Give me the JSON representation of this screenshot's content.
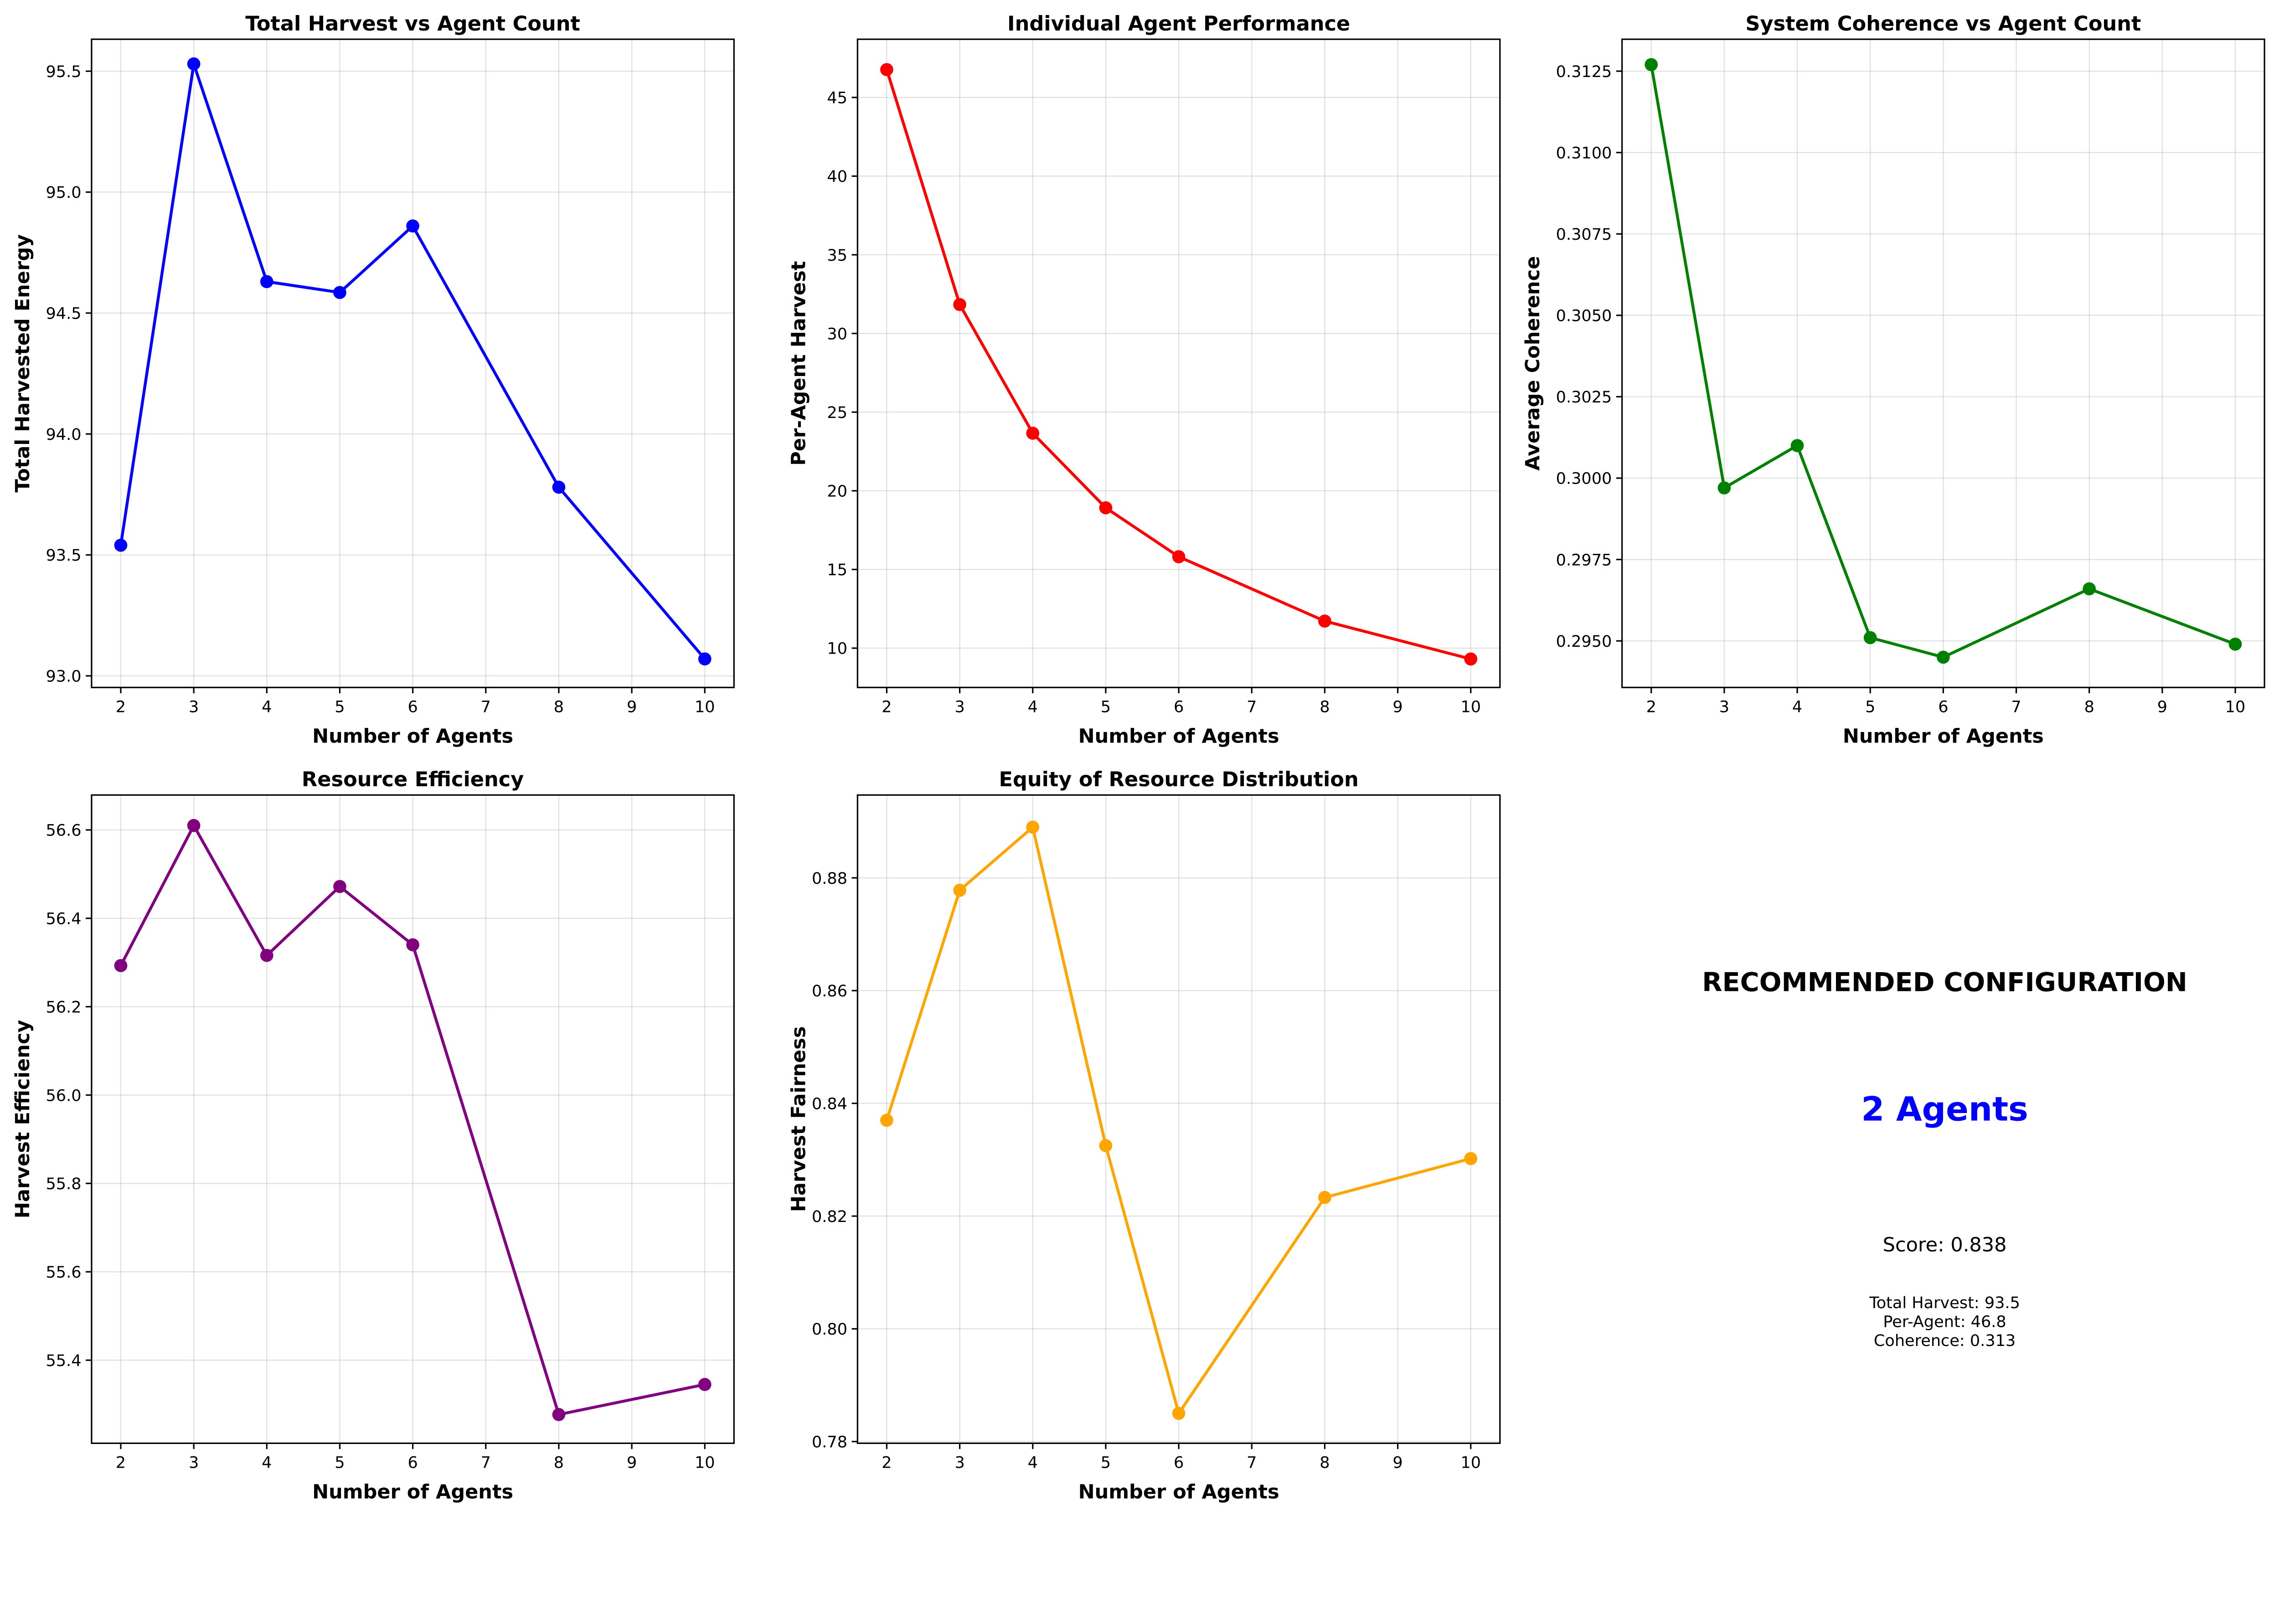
{
  "chart_data": [
    {
      "type": "line",
      "title": "Total Harvest vs Agent Count",
      "xlabel": "Number of Agents",
      "ylabel": "Total Harvested Energy",
      "color": "#0000ff",
      "x": [
        2,
        3,
        4,
        5,
        6,
        8,
        10
      ],
      "values": [
        93.54,
        95.53,
        94.63,
        94.585,
        94.86,
        93.78,
        93.07
      ],
      "xlim": [
        1.6,
        10.4
      ],
      "ylim": [
        92.952,
        95.632
      ],
      "xticks": [
        "2",
        "3",
        "4",
        "5",
        "6",
        "7",
        "8",
        "9",
        "10"
      ],
      "yticks": [
        "93.0",
        "93.5",
        "94.0",
        "94.5",
        "95.0",
        "95.5"
      ],
      "grid": true
    },
    {
      "type": "line",
      "title": "Individual Agent Performance",
      "xlabel": "Number of Agents",
      "ylabel": "Per-Agent Harvest",
      "color": "#ff0000",
      "x": [
        2,
        3,
        4,
        5,
        6,
        8,
        10
      ],
      "values": [
        46.77,
        31.84,
        23.66,
        18.92,
        15.81,
        11.72,
        9.31
      ],
      "xlim": [
        1.6,
        10.4
      ],
      "ylim": [
        7.5,
        48.7
      ],
      "xticks": [
        "2",
        "3",
        "4",
        "5",
        "6",
        "7",
        "8",
        "9",
        "10"
      ],
      "yticks": [
        "10",
        "15",
        "20",
        "25",
        "30",
        "35",
        "40",
        "45"
      ],
      "grid": true
    },
    {
      "type": "line",
      "title": "System Coherence vs Agent Count",
      "xlabel": "Number of Agents",
      "ylabel": "Average Coherence",
      "color": "#008000",
      "x": [
        2,
        3,
        4,
        5,
        6,
        8,
        10
      ],
      "values": [
        0.3127,
        0.2997,
        0.301,
        0.2951,
        0.2945,
        0.2966,
        0.2949
      ],
      "xlim": [
        1.6,
        10.4
      ],
      "ylim": [
        0.29357,
        0.31348
      ],
      "xticks": [
        "2",
        "3",
        "4",
        "5",
        "6",
        "7",
        "8",
        "9",
        "10"
      ],
      "yticks": [
        "0.2950",
        "0.2975",
        "0.3000",
        "0.3025",
        "0.3050",
        "0.3075",
        "0.3100",
        "0.3125"
      ],
      "grid": true
    },
    {
      "type": "line",
      "title": "Resource Efficiency",
      "xlabel": "Number of Agents",
      "ylabel": "Harvest Efficiency",
      "color": "#800080",
      "x": [
        2,
        3,
        4,
        5,
        6,
        8,
        10
      ],
      "values": [
        56.293,
        56.61,
        56.316,
        56.472,
        56.34,
        55.277,
        55.345
      ],
      "xlim": [
        1.6,
        10.4
      ],
      "ylim": [
        55.212,
        56.679
      ],
      "xticks": [
        "2",
        "3",
        "4",
        "5",
        "6",
        "7",
        "8",
        "9",
        "10"
      ],
      "yticks": [
        "55.4",
        "55.6",
        "55.8",
        "56.0",
        "56.2",
        "56.4",
        "56.6"
      ],
      "grid": true
    },
    {
      "type": "line",
      "title": "Equity of Resource Distribution",
      "xlabel": "Number of Agents",
      "ylabel": "Harvest Fairness",
      "color": "#ffa500",
      "x": [
        2,
        3,
        4,
        5,
        6,
        8,
        10
      ],
      "values": [
        0.837,
        0.8778,
        0.889,
        0.8325,
        0.785,
        0.8233,
        0.8302
      ],
      "xlim": [
        1.6,
        10.4
      ],
      "ylim": [
        0.7797,
        0.8947
      ],
      "xticks": [
        "2",
        "3",
        "4",
        "5",
        "6",
        "7",
        "8",
        "9",
        "10"
      ],
      "yticks": [
        "0.78",
        "0.80",
        "0.82",
        "0.84",
        "0.86",
        "0.88"
      ],
      "grid": true
    }
  ],
  "recommendation": {
    "heading": "RECOMMENDED CONFIGURATION",
    "agents": "2 Agents",
    "agents_color": "#0000ff",
    "score": "Score: 0.838",
    "total_harvest": "Total Harvest: 93.5",
    "per_agent": "Per-Agent: 46.8",
    "coherence": "Coherence: 0.313"
  }
}
